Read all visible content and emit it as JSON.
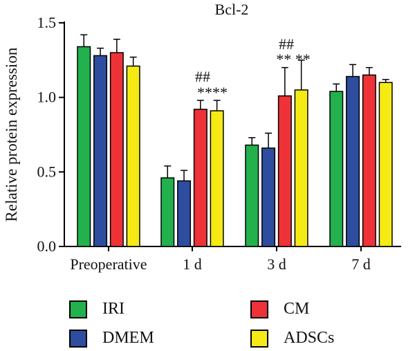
{
  "chart_data": {
    "type": "bar",
    "title": "Bcl-2",
    "xlabel": "",
    "ylabel": "Relative protein expression",
    "categories": [
      "Preoperative",
      "1 d",
      "3 d",
      "7 d"
    ],
    "ylim": [
      0,
      1.5
    ],
    "yticks": [
      "0.0",
      "0.5",
      "1.0",
      "1.5"
    ],
    "series": [
      {
        "name": "IRI",
        "color": "#22b14c",
        "values": [
          1.34,
          0.46,
          0.68,
          1.04
        ],
        "errors": [
          0.08,
          0.08,
          0.05,
          0.05
        ]
      },
      {
        "name": "DMEM",
        "color": "#2e4d9e",
        "values": [
          1.28,
          0.44,
          0.66,
          1.14
        ],
        "errors": [
          0.05,
          0.07,
          0.1,
          0.08
        ]
      },
      {
        "name": "CM",
        "color": "#ee3237",
        "values": [
          1.3,
          0.92,
          1.01,
          1.15
        ],
        "errors": [
          0.09,
          0.06,
          0.19,
          0.05
        ]
      },
      {
        "name": "ADSCs",
        "color": "#f5ea14",
        "values": [
          1.21,
          0.91,
          1.05,
          1.1
        ],
        "errors": [
          0.06,
          0.07,
          0.2,
          0.02
        ]
      }
    ],
    "annotations": [
      {
        "category": "1 d",
        "text": "##"
      },
      {
        "category": "1 d",
        "text": "****"
      },
      {
        "category": "3 d",
        "text": "##"
      },
      {
        "category": "3 d",
        "text": "** **"
      }
    ],
    "legend_placement": "bottom",
    "grid": false
  },
  "legend": {
    "items": [
      {
        "label": "IRI",
        "color": "#22b14c"
      },
      {
        "label": "CM",
        "color": "#ee3237"
      },
      {
        "label": "DMEM",
        "color": "#2e4d9e"
      },
      {
        "label": "ADSCs",
        "color": "#f5ea14"
      }
    ]
  }
}
